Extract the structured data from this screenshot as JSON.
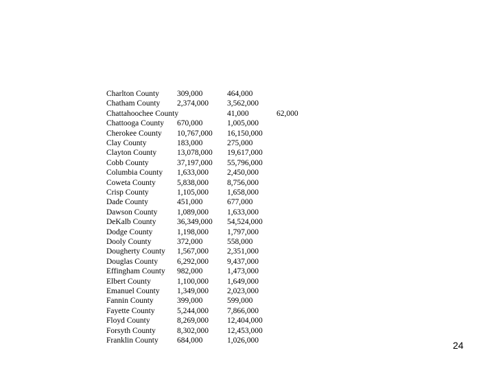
{
  "rows": [
    [
      "Charlton County",
      "309,000",
      "464,000",
      ""
    ],
    [
      "Chatham County",
      "2,374,000",
      "3,562,000",
      ""
    ],
    [
      "Chattahoochee County",
      "",
      "41,000",
      "62,000"
    ],
    [
      "Chattooga County",
      "670,000",
      "1,005,000",
      ""
    ],
    [
      "Cherokee County",
      "10,767,000",
      "16,150,000",
      ""
    ],
    [
      "Clay County",
      "183,000",
      "275,000",
      ""
    ],
    [
      "Clayton County",
      "13,078,000",
      "19,617,000",
      ""
    ],
    [
      "Cobb County",
      "37,197,000",
      "55,796,000",
      ""
    ],
    [
      "Columbia County",
      "1,633,000",
      "2,450,000",
      ""
    ],
    [
      "Coweta County",
      "5,838,000",
      "8,756,000",
      ""
    ],
    [
      "Crisp County",
      "1,105,000",
      "1,658,000",
      ""
    ],
    [
      "Dade County",
      "451,000",
      "677,000",
      ""
    ],
    [
      "Dawson County",
      "1,089,000",
      "1,633,000",
      ""
    ],
    [
      "DeKalb County",
      "36,349,000",
      "54,524,000",
      ""
    ],
    [
      "Dodge County",
      "1,198,000",
      "1,797,000",
      ""
    ],
    [
      "Dooly County",
      "372,000",
      "558,000",
      ""
    ],
    [
      "Dougherty County",
      "1,567,000",
      "2,351,000",
      ""
    ],
    [
      "Douglas County",
      "6,292,000",
      "9,437,000",
      ""
    ],
    [
      "Effingham County",
      "982,000",
      "1,473,000",
      ""
    ],
    [
      "Elbert County",
      "1,100,000",
      "1,649,000",
      ""
    ],
    [
      "Emanuel County",
      "1,349,000",
      "2,023,000",
      ""
    ],
    [
      "Fannin County",
      "399,000",
      "599,000",
      ""
    ],
    [
      "Fayette County",
      "5,244,000",
      "7,866,000",
      ""
    ],
    [
      "Floyd County",
      "8,269,000",
      "12,404,000",
      ""
    ],
    [
      "Forsyth County",
      "8,302,000",
      "12,453,000",
      ""
    ],
    [
      "Franklin County",
      "684,000",
      "1,026,000",
      ""
    ]
  ],
  "page_number": "24"
}
